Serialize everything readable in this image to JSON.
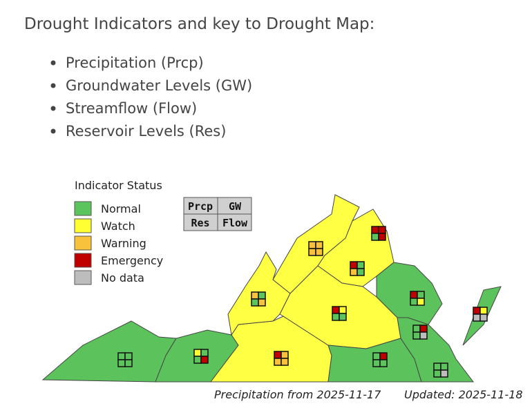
{
  "heading": "Drought Indicators and key to Drought Map:",
  "indicators": [
    "Precipitation (Prcp)",
    "Groundwater Levels (GW)",
    "Streamflow (Flow)",
    "Reservoir Levels (Res)"
  ],
  "map": {
    "legend_title": "Indicator Status",
    "legend": [
      {
        "label": "Normal",
        "color": "#5cc45c"
      },
      {
        "label": "Watch",
        "color": "#ffff33"
      },
      {
        "label": "Warning",
        "color": "#f9c23c"
      },
      {
        "label": "Emergency",
        "color": "#c00000"
      },
      {
        "label": "No data",
        "color": "#bdbdbd"
      }
    ],
    "key": [
      "Prcp",
      "GW",
      "Res",
      "Flow"
    ],
    "regions": [
      {
        "cells": [
          "#5cc45c",
          "#5cc45c",
          "#5cc45c",
          "#5cc45c"
        ]
      },
      {
        "cells": [
          "#ffff33",
          "#5cc45c",
          "#5cc45c",
          "#c00000"
        ]
      },
      {
        "cells": [
          "#f9c23c",
          "#5cc45c",
          "#5cc45c",
          "#f9c23c"
        ]
      },
      {
        "cells": [
          "#f9c23c",
          "#f9c23c",
          "#f9c23c",
          "#f9c23c"
        ]
      },
      {
        "cells": [
          "#c00000",
          "#c00000",
          "#5cc45c",
          "#c00000"
        ]
      },
      {
        "cells": [
          "#c00000",
          "#5cc45c",
          "#f9c23c",
          "#5cc45c"
        ]
      },
      {
        "cells": [
          "#c00000",
          "#ffff33",
          "#5cc45c",
          "#5cc45c"
        ]
      },
      {
        "cells": [
          "#c00000",
          "#f9c23c",
          "#f9c23c",
          "#f9c23c"
        ]
      },
      {
        "cells": [
          "#5cc45c",
          "#c00000",
          "#5cc45c",
          "#5cc45c"
        ]
      },
      {
        "cells": [
          "#c00000",
          "#5cc45c",
          "#5cc45c",
          "#ffff33"
        ]
      },
      {
        "cells": [
          "#5cc45c",
          "#c00000",
          "#5cc45c",
          "#bdbdbd"
        ]
      },
      {
        "cells": [
          "#5cc45c",
          "#5cc45c",
          "#5cc45c",
          "#bdbdbd"
        ]
      },
      {
        "cells": [
          "#c00000",
          "#ffff33",
          "#bdbdbd",
          "#bdbdbd"
        ]
      }
    ],
    "source_note": "Precipitation from 2025-11-17",
    "updated": "Updated: 2025-11-18"
  }
}
